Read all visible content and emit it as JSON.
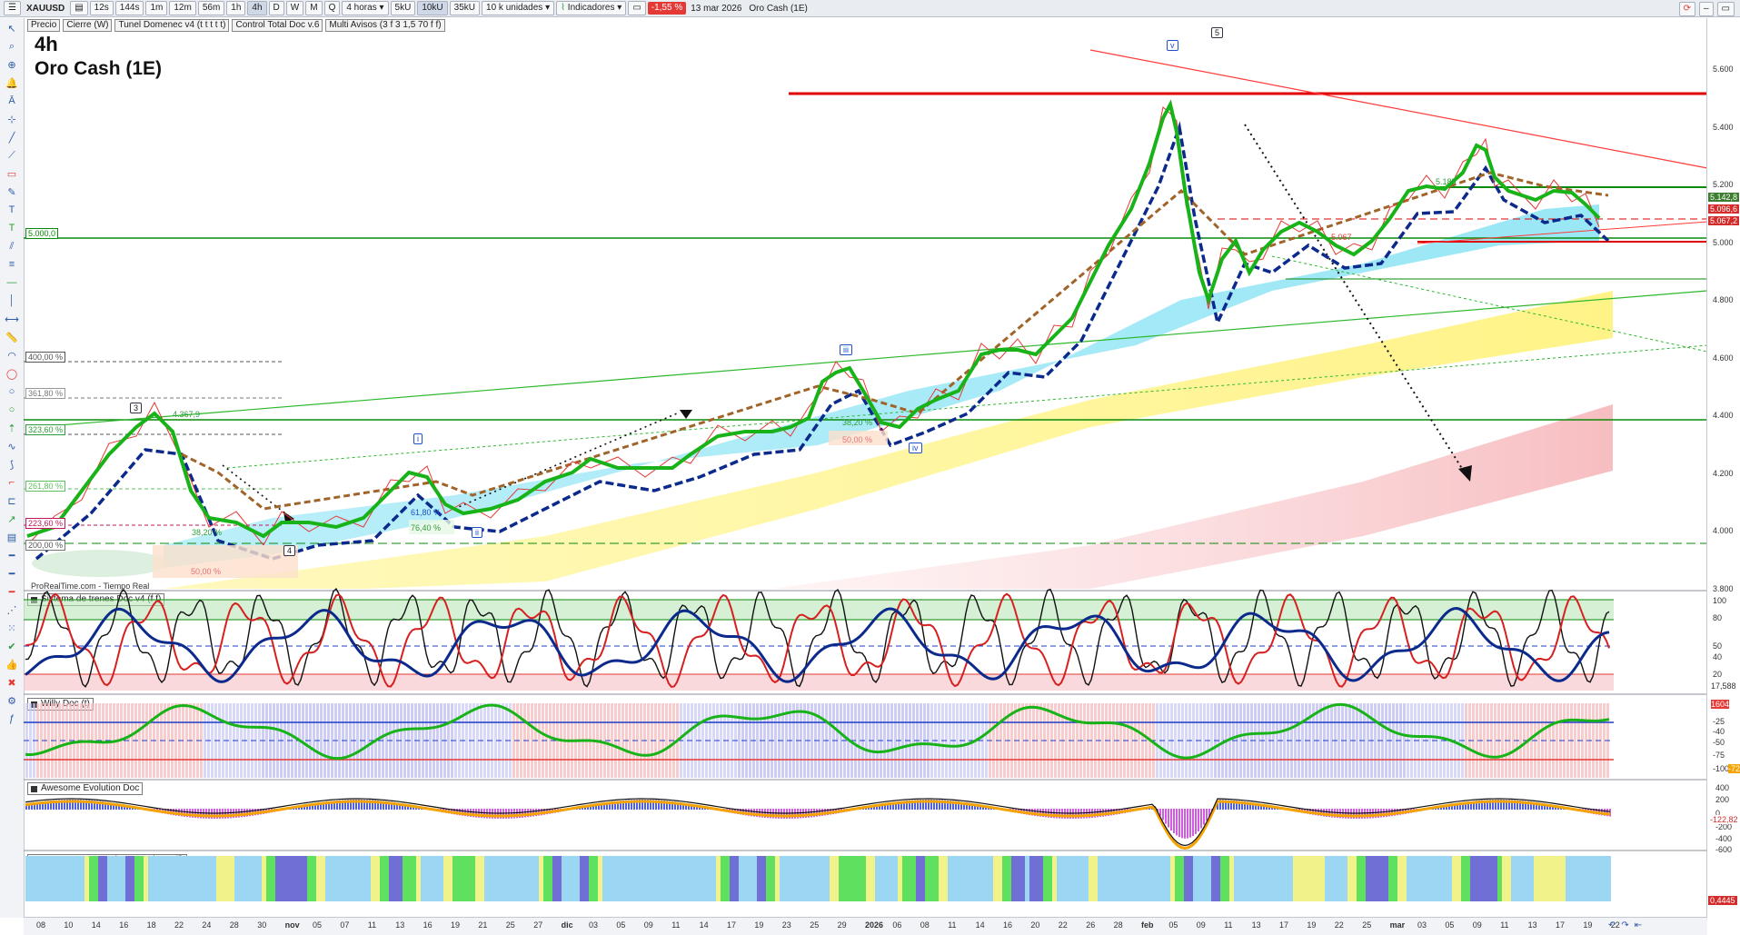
{
  "toolbar": {
    "symbol": "XAUUSD",
    "timeframes": [
      "12s",
      "144s",
      "1m",
      "12m",
      "56m",
      "1h",
      "4h",
      "D",
      "W",
      "M",
      "Q"
    ],
    "active_timeframe": "4h",
    "period_select": "4 horas",
    "units": [
      "5kU",
      "10kU",
      "35kU"
    ],
    "units_select": "10 k unidades",
    "indicators_label": "Indicadores",
    "change": "-1,55 %",
    "date": "13 mar 2026",
    "instrument_name": "Oro Cash (1E)"
  },
  "legend": [
    "Precio",
    "Cierre (W)",
    "Tunel Domenec v4 (t t t t t)",
    "Control Total Doc v.6",
    "Multi Avisos (3 f 3 1,5 70 f f)"
  ],
  "main": {
    "timeframe_label": "4h",
    "title": "Oro Cash (1E)",
    "source_note": "ProRealTime.com - Tiempo Real",
    "price_level_left": "5.000,0"
  },
  "right_axis": {
    "price_ticks": [
      "5.600",
      "5.400",
      "5.200",
      "5.000",
      "4.800",
      "4.600",
      "4.400",
      "4.200",
      "4.000",
      "3.800"
    ],
    "price_tags": [
      {
        "text": "5.142,8",
        "color": "#3b7d2e"
      },
      {
        "text": "5.096,6",
        "color": "#d42b2b"
      },
      {
        "text": "5.067,2",
        "color": "#d42b2b"
      }
    ],
    "osc1_ticks": [
      "100",
      "80",
      "50",
      "40",
      "20"
    ],
    "osc1_tag": "17,588",
    "osc2_ticks": [
      "-25",
      "-40",
      "-50",
      "-75",
      "-100"
    ],
    "osc2_tags": [
      "1604",
      "-72"
    ],
    "osc3_ticks": [
      "400",
      "200",
      "0",
      "-200",
      "-400",
      "-600"
    ],
    "osc3_tag": "-122,82",
    "osc4_tag": "0,4445"
  },
  "fib_labels": [
    {
      "text": "400,00 %",
      "color": "#555"
    },
    {
      "text": "361,80 %",
      "color": "#777"
    },
    {
      "text": "323,60 %",
      "color": "#2e9d3b"
    },
    {
      "text": "261,80 %",
      "color": "#5fbf5f"
    },
    {
      "text": "223,60 %",
      "color": "#c2185b"
    },
    {
      "text": "200,00 %",
      "color": "#555"
    }
  ],
  "wave_labels": [
    "3",
    "4",
    "i",
    "ii",
    "iii",
    "iv",
    "v",
    "5"
  ],
  "chart_annotations": [
    "4.367,9",
    "38,20 %",
    "50,00 %",
    "61,80 %",
    "76,40 %",
    "38,20 %",
    "50,00 %",
    "5.185",
    "5.067"
  ],
  "panes": [
    {
      "title": "Sistema de trenes Doc v4 (f f)"
    },
    {
      "title": "Willy Doc (t)"
    },
    {
      "title": "Awesome Evolution Doc"
    },
    {
      "title": "Barra Fuerza Fondo Mercado v4 (f)"
    }
  ],
  "x_axis_labels": [
    "08",
    "10",
    "14",
    "16",
    "18",
    "22",
    "24",
    "28",
    "30",
    "nov",
    "05",
    "07",
    "11",
    "13",
    "16",
    "19",
    "21",
    "25",
    "27",
    "dic",
    "03",
    "05",
    "09",
    "11",
    "14",
    "17",
    "19",
    "23",
    "25",
    "29",
    "2026",
    "06",
    "08",
    "11",
    "14",
    "16",
    "20",
    "22",
    "26",
    "28",
    "feb",
    "05",
    "09",
    "11",
    "13",
    "17",
    "19",
    "22",
    "25",
    "mar",
    "03",
    "05",
    "09",
    "11",
    "13",
    "17",
    "19",
    "22"
  ],
  "colors": {
    "accent_red": "#e53935",
    "price_green": "#18b318",
    "trend_blue": "#0b2a8c",
    "cloud_blue": "#8ee4f5",
    "cloud_yellow": "#fff6a0",
    "cloud_pink": "#f8c9cc"
  }
}
